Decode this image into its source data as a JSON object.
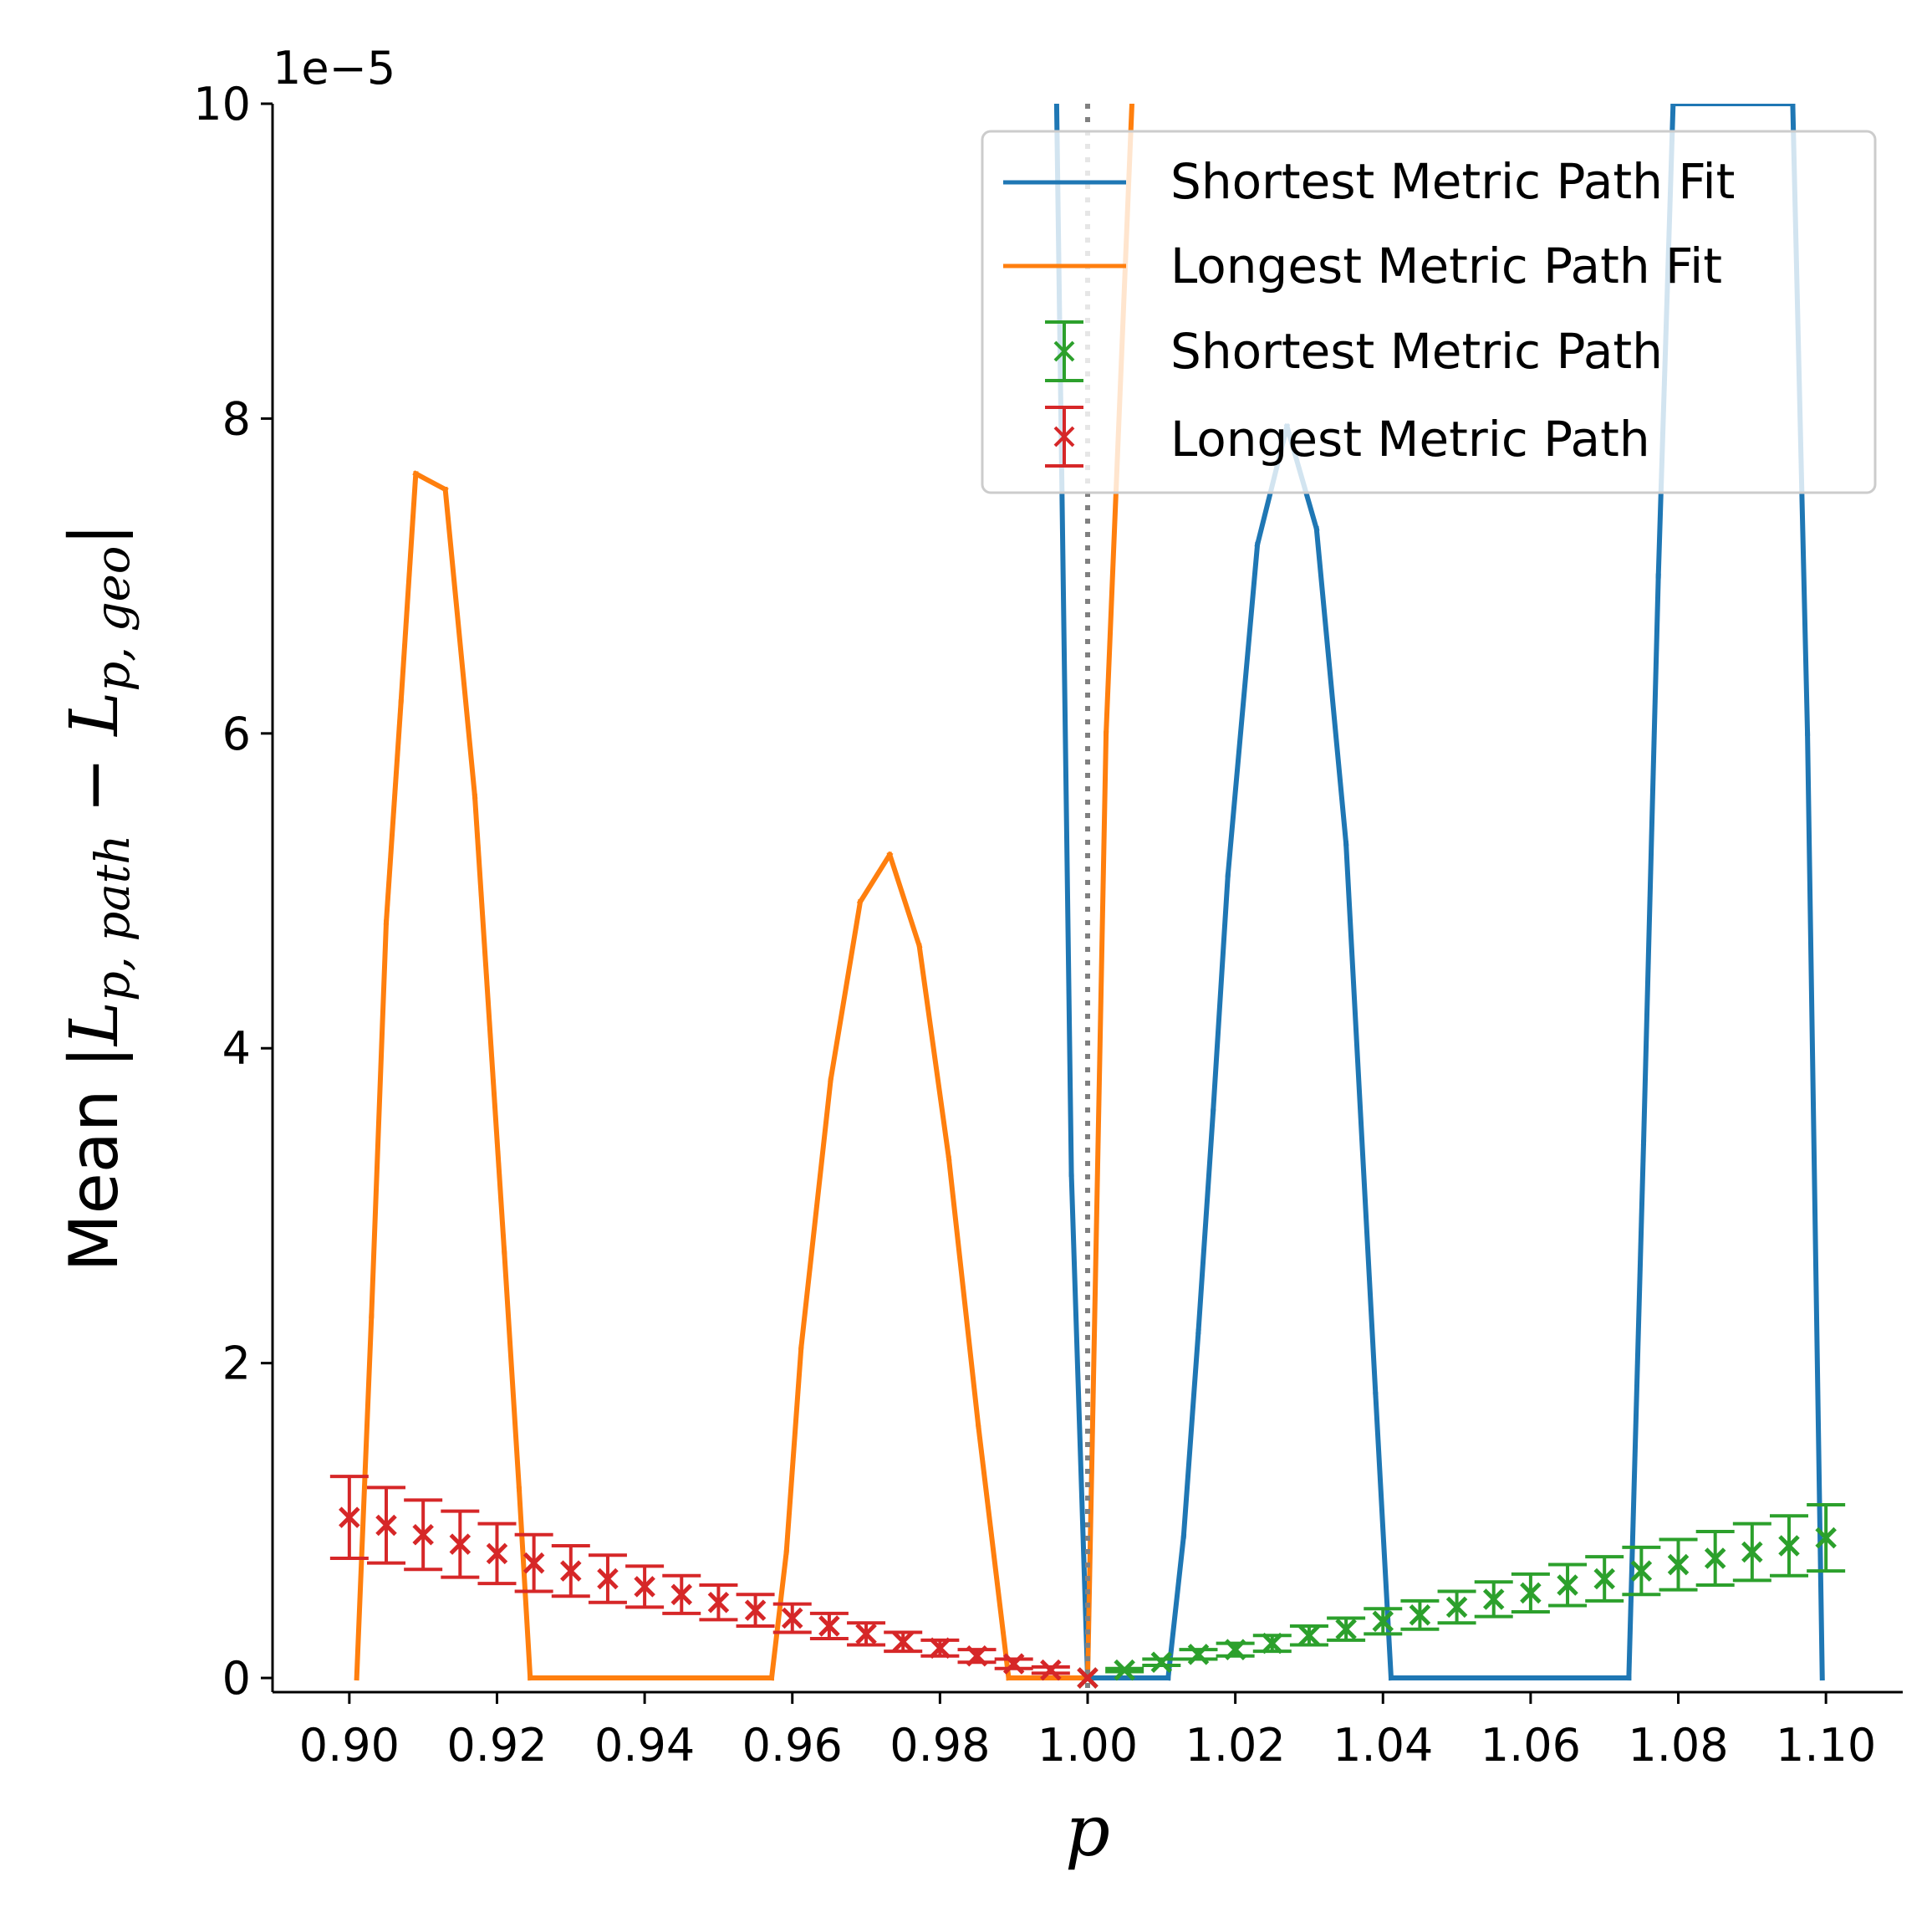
{
  "chart_data": {
    "type": "line",
    "xlabel": "p",
    "ylabel": {
      "prefix": "Mean |",
      "math": "L",
      "sub1": "p, path",
      "minus": " − ",
      "math2": "L",
      "sub2": "p, geo",
      "suffix": "|"
    },
    "y_offset_text": "1e−5",
    "xlim": [
      0.8896,
      1.1104
    ],
    "ylim": [
      -0.09,
      10.0
    ],
    "x_ticks": [
      {
        "v": 0.9,
        "label": "0.90"
      },
      {
        "v": 0.92,
        "label": "0.92"
      },
      {
        "v": 0.94,
        "label": "0.94"
      },
      {
        "v": 0.96,
        "label": "0.96"
      },
      {
        "v": 0.98,
        "label": "0.98"
      },
      {
        "v": 1.0,
        "label": "1.00"
      },
      {
        "v": 1.02,
        "label": "1.02"
      },
      {
        "v": 1.04,
        "label": "1.04"
      },
      {
        "v": 1.06,
        "label": "1.06"
      },
      {
        "v": 1.08,
        "label": "1.08"
      },
      {
        "v": 1.1,
        "label": "1.10"
      }
    ],
    "y_ticks": [
      {
        "v": 0,
        "label": "0"
      },
      {
        "v": 2,
        "label": "2"
      },
      {
        "v": 4,
        "label": "4"
      },
      {
        "v": 6,
        "label": "6"
      },
      {
        "v": 8,
        "label": "8"
      },
      {
        "v": 10,
        "label": "10"
      }
    ],
    "reference_line": {
      "x": 1.0,
      "style": "dotted",
      "color": "#808080"
    },
    "legend_position": "upper right",
    "series": [
      {
        "name": "Shortest Metric Path Fit",
        "kind": "line",
        "color": "#1f77b4",
        "x": [
          0.9958,
          0.9978,
          1.0,
          1.0109,
          1.013,
          1.015,
          1.017,
          1.019,
          1.023,
          1.027,
          1.031,
          1.035,
          1.039,
          1.0411,
          1.0733,
          1.0753,
          1.0773,
          1.0793,
          1.0955,
          1.0975,
          1.0995
        ],
        "y": [
          10.0,
          3.2,
          0.0,
          0.0,
          0.9,
          2.2,
          3.6,
          5.1,
          7.2,
          7.95,
          7.3,
          5.3,
          1.8,
          0.0,
          0.0,
          3.4,
          7.0,
          10.0,
          10.0,
          6.0,
          0.0
        ]
      },
      {
        "name": "Longest Metric Path Fit",
        "kind": "line",
        "color": "#ff7f0e",
        "x": [
          0.901,
          0.903,
          0.905,
          0.907,
          0.909,
          0.913,
          0.917,
          0.921,
          0.923,
          0.9245,
          0.9572,
          0.9592,
          0.9612,
          0.9652,
          0.9692,
          0.9732,
          0.9772,
          0.9812,
          0.9852,
          0.9893,
          1.0,
          1.0025,
          1.006
        ],
        "y": [
          0.0,
          2.3,
          4.8,
          6.2,
          7.65,
          7.55,
          5.6,
          2.7,
          1.2,
          0.0,
          0.0,
          0.8,
          2.1,
          3.8,
          4.93,
          5.23,
          4.65,
          3.3,
          1.6,
          0.0,
          0.0,
          6.0,
          10.0
        ]
      },
      {
        "name": "Shortest Metric Path",
        "kind": "errorbar",
        "marker": "x",
        "color": "#2ca02c",
        "x": [
          1.0,
          1.005,
          1.01,
          1.015,
          1.02,
          1.025,
          1.03,
          1.035,
          1.04,
          1.045,
          1.05,
          1.055,
          1.06,
          1.065,
          1.07,
          1.075,
          1.08,
          1.085,
          1.09,
          1.095,
          1.1
        ],
        "y": [
          0.0,
          0.05,
          0.1,
          0.15,
          0.18,
          0.22,
          0.27,
          0.31,
          0.36,
          0.4,
          0.45,
          0.5,
          0.54,
          0.59,
          0.63,
          0.68,
          0.72,
          0.76,
          0.8,
          0.84,
          0.89
        ],
        "err": [
          0.0,
          0.01,
          0.02,
          0.03,
          0.04,
          0.05,
          0.06,
          0.07,
          0.08,
          0.09,
          0.1,
          0.11,
          0.12,
          0.13,
          0.14,
          0.15,
          0.16,
          0.17,
          0.18,
          0.19,
          0.21
        ]
      },
      {
        "name": "Longest Metric Path",
        "kind": "errorbar",
        "marker": "x",
        "color": "#d62728",
        "x": [
          0.9,
          0.905,
          0.91,
          0.915,
          0.92,
          0.925,
          0.93,
          0.935,
          0.94,
          0.945,
          0.95,
          0.955,
          0.96,
          0.965,
          0.97,
          0.975,
          0.98,
          0.985,
          0.99,
          0.995,
          1.0
        ],
        "y": [
          1.02,
          0.97,
          0.91,
          0.85,
          0.79,
          0.73,
          0.68,
          0.63,
          0.58,
          0.53,
          0.48,
          0.43,
          0.38,
          0.33,
          0.28,
          0.23,
          0.19,
          0.14,
          0.09,
          0.05,
          0.0
        ],
        "err": [
          0.26,
          0.24,
          0.22,
          0.21,
          0.19,
          0.18,
          0.16,
          0.15,
          0.13,
          0.12,
          0.11,
          0.1,
          0.09,
          0.08,
          0.07,
          0.06,
          0.05,
          0.04,
          0.03,
          0.02,
          0.0
        ]
      }
    ]
  }
}
